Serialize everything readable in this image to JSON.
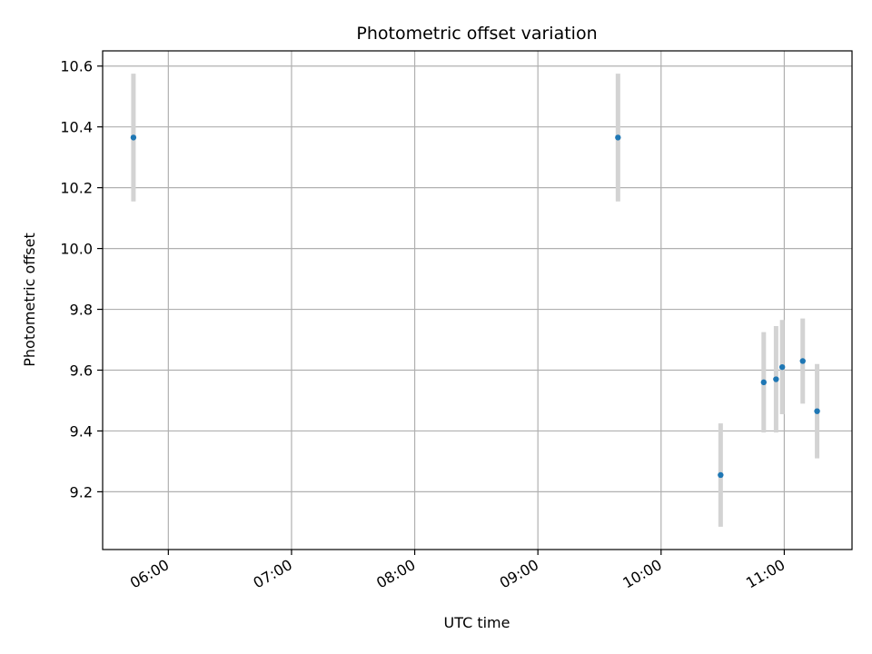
{
  "chart_data": {
    "type": "scatter",
    "title": "Photometric offset variation",
    "xlabel": "UTC time",
    "ylabel": "Photometric offset",
    "x_ticks": [
      "06:00",
      "07:00",
      "08:00",
      "09:00",
      "10:00",
      "11:00"
    ],
    "y_ticks": [
      "9.2",
      "9.4",
      "9.6",
      "9.8",
      "10.0",
      "10.2",
      "10.4",
      "10.6"
    ],
    "xlim": [
      "05:28",
      "11:33"
    ],
    "ylim": [
      9.01,
      10.65
    ],
    "grid": true,
    "points": [
      {
        "x": "05:43",
        "y": 10.365,
        "err": 0.21
      },
      {
        "x": "09:39",
        "y": 10.365,
        "err": 0.21
      },
      {
        "x": "10:29",
        "y": 9.255,
        "err": 0.17
      },
      {
        "x": "10:50",
        "y": 9.56,
        "err": 0.165
      },
      {
        "x": "10:56",
        "y": 9.57,
        "err": 0.175
      },
      {
        "x": "10:59",
        "y": 9.61,
        "err": 0.155
      },
      {
        "x": "11:09",
        "y": 9.63,
        "err": 0.14
      },
      {
        "x": "11:16",
        "y": 9.465,
        "err": 0.155
      }
    ]
  },
  "colors": {
    "marker": "#1f77b4",
    "errorbar": "#d3d3d3",
    "grid": "#b0b0b0",
    "axes": "#000000"
  }
}
